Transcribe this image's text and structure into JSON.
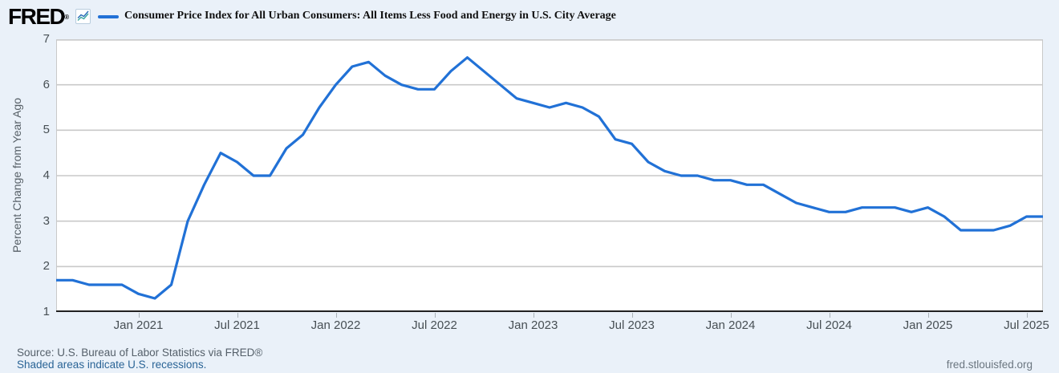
{
  "header": {
    "logo_text": "FRED",
    "registered_mark": "®",
    "title": "Consumer Price Index for All Urban Consumers: All Items Less Food and Energy in U.S. City Average",
    "series_legend_color": "#2171d6"
  },
  "chart_data": {
    "type": "line",
    "title": "Consumer Price Index for All Urban Consumers: All Items Less Food and Energy in U.S. City Average",
    "ylabel": "Percent Change from Year Ago",
    "ylim": [
      1,
      7
    ],
    "yticks": [
      1,
      2,
      3,
      4,
      5,
      6,
      7
    ],
    "grid": "horizontal-only",
    "legend_position": "top",
    "line_color": "#2171d6",
    "frequency": "monthly",
    "x": [
      "2020-08",
      "2020-09",
      "2020-10",
      "2020-11",
      "2020-12",
      "2021-01",
      "2021-02",
      "2021-03",
      "2021-04",
      "2021-05",
      "2021-06",
      "2021-07",
      "2021-08",
      "2021-09",
      "2021-10",
      "2021-11",
      "2021-12",
      "2022-01",
      "2022-02",
      "2022-03",
      "2022-04",
      "2022-05",
      "2022-06",
      "2022-07",
      "2022-08",
      "2022-09",
      "2022-10",
      "2022-11",
      "2022-12",
      "2023-01",
      "2023-02",
      "2023-03",
      "2023-04",
      "2023-05",
      "2023-06",
      "2023-07",
      "2023-08",
      "2023-09",
      "2023-10",
      "2023-11",
      "2023-12",
      "2024-01",
      "2024-02",
      "2024-03",
      "2024-04",
      "2024-05",
      "2024-06",
      "2024-07",
      "2024-08",
      "2024-09",
      "2024-10",
      "2024-11",
      "2024-12",
      "2025-01",
      "2025-02",
      "2025-03",
      "2025-04",
      "2025-05",
      "2025-06",
      "2025-07",
      "2025-08"
    ],
    "values": [
      1.7,
      1.7,
      1.6,
      1.6,
      1.6,
      1.4,
      1.3,
      1.6,
      3.0,
      3.8,
      4.5,
      4.3,
      4.0,
      4.0,
      4.6,
      4.9,
      5.5,
      6.0,
      6.4,
      6.5,
      6.2,
      6.0,
      5.9,
      5.9,
      6.3,
      6.6,
      6.3,
      6.0,
      5.7,
      5.6,
      5.5,
      5.6,
      5.5,
      5.3,
      4.8,
      4.7,
      4.3,
      4.1,
      4.0,
      4.0,
      3.9,
      3.9,
      3.8,
      3.8,
      3.6,
      3.4,
      3.3,
      3.2,
      3.2,
      3.3,
      3.3,
      3.3,
      3.2,
      3.3,
      3.1,
      2.8,
      2.8,
      2.8,
      2.9,
      3.1,
      3.1
    ],
    "x_tick_labels": [
      "Jan 2021",
      "Jul 2021",
      "Jan 2022",
      "Jul 2022",
      "Jan 2023",
      "Jul 2023",
      "Jan 2024",
      "Jul 2024",
      "Jan 2025",
      "Jul 2025"
    ],
    "x_tick_month_indices": [
      5,
      11,
      17,
      23,
      29,
      35,
      41,
      47,
      53,
      59
    ]
  },
  "footer": {
    "source_text": "Source: U.S. Bureau of Labor Statistics via FRED®",
    "recession_note": "Shaded areas indicate U.S. recessions.",
    "site_url": "fred.stlouisfed.org"
  },
  "colors": {
    "background": "#eaf1f9",
    "plot_background": "#ffffff",
    "gridline": "#c9c9c9",
    "axis_line": "#222222",
    "tick_mark": "#aab2b8",
    "line": "#2171d6",
    "link": "#2a6496",
    "text_gray": "#55606a"
  }
}
